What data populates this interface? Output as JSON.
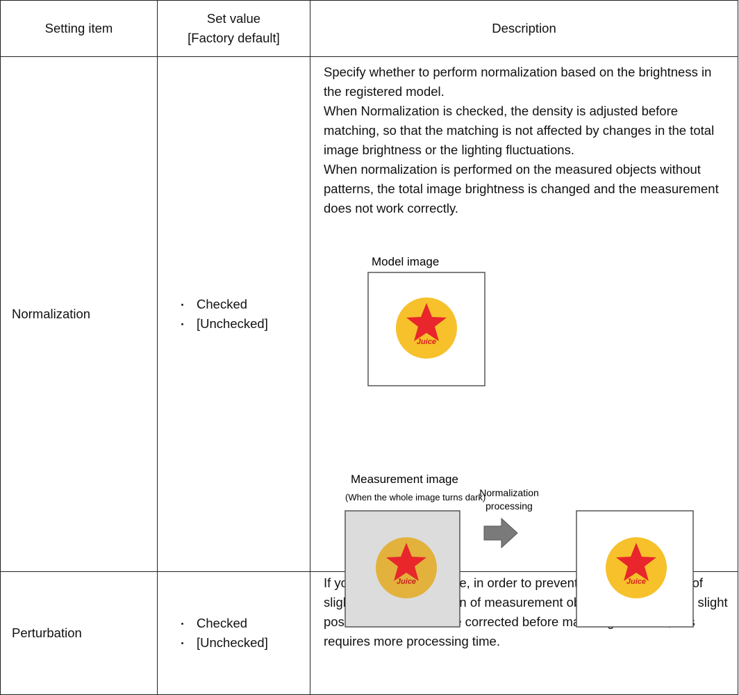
{
  "table": {
    "header": [
      "Setting item",
      "Set value",
      "[Factory default]",
      "Description"
    ],
    "rows": [
      {
        "item": "Normalization",
        "values": [
          "Checked",
          "[Unchecked]"
        ],
        "description": [
          "Specify whether to perform normalization based on the brightness in the registered model.",
          "When Normalization is checked, the density is adjusted before matching, so that the matching is not affected by changes in the total image brightness or the lighting fluctuations.",
          "When normalization is performed on the measured objects without patterns, the total image brightness is changed and the measurement does not work correctly."
        ],
        "figure": {
          "model_label": "Model image",
          "measurement_label": "Measurement image",
          "measurement_note": "(When the whole image turns dark)",
          "process_label": [
            "Normalization",
            "processing"
          ],
          "logo_text": "Juice"
        }
      },
      {
        "item": "Perturbation",
        "values": [
          "Checked",
          "[Unchecked]"
        ],
        "description": [
          "If you place a check here, in order to prevent mistaken detection of slight positional deviation of measurement objects as differences, slight positional deviations are corrected before matching.However, this requires more processing time."
        ]
      }
    ]
  }
}
